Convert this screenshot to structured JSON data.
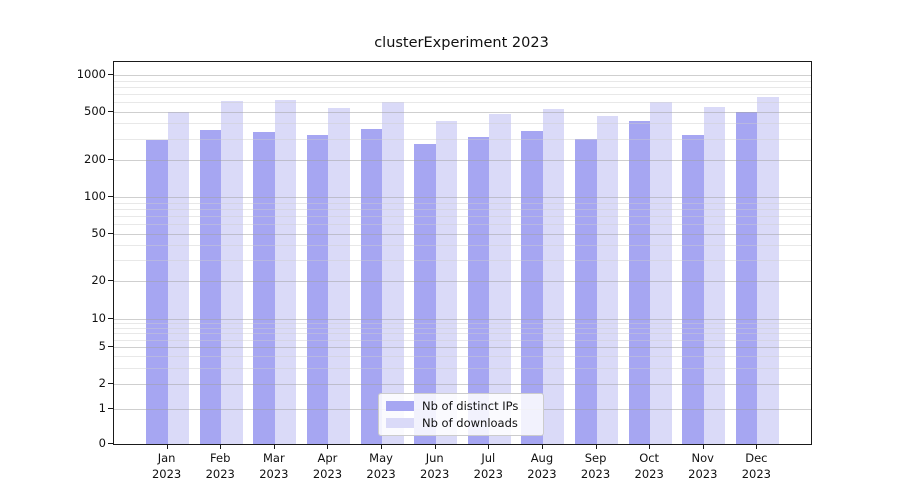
{
  "chart_data": {
    "type": "bar",
    "title": "clusterExperiment 2023",
    "categories": [
      "Jan",
      "Feb",
      "Mar",
      "Apr",
      "May",
      "Jun",
      "Jul",
      "Aug",
      "Sep",
      "Oct",
      "Nov",
      "Dec"
    ],
    "category_year": "2023",
    "series": [
      {
        "name": "Nb of distinct IPs",
        "color": "#a6a6f2",
        "values": [
          290,
          355,
          340,
          320,
          360,
          273,
          310,
          348,
          300,
          420,
          320,
          500
        ]
      },
      {
        "name": "Nb of downloads",
        "color": "#dadaf8",
        "values": [
          495,
          610,
          620,
          530,
          600,
          420,
          480,
          525,
          460,
          600,
          545,
          660
        ]
      }
    ],
    "xlabel": "",
    "ylabel": "",
    "yscale": "symlog",
    "yticks": [
      0,
      1,
      2,
      5,
      10,
      20,
      50,
      100,
      200,
      500,
      1000
    ],
    "ylim": [
      0,
      1300
    ],
    "grid": true,
    "legend_position": "lower center"
  }
}
